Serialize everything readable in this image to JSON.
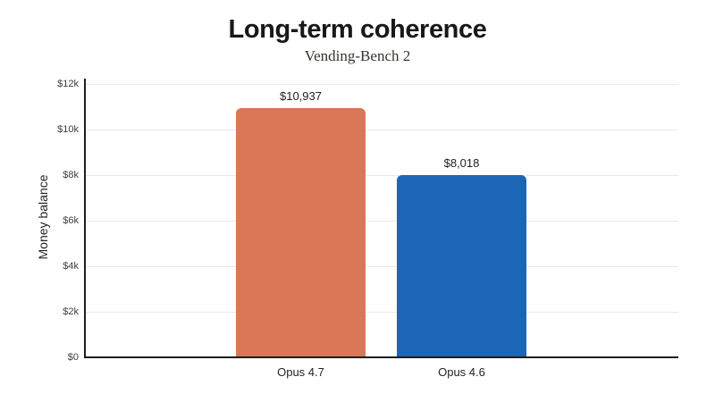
{
  "chart": {
    "title": "Long-term coherence",
    "subtitle": "Vending-Bench 2",
    "ylabel": "Money balance"
  },
  "chart_data": {
    "type": "bar",
    "title": "Long-term coherence",
    "subtitle": "Vending-Bench 2",
    "xlabel": "",
    "ylabel": "Money balance",
    "ylim": [
      0,
      12000
    ],
    "grid": "horizontal",
    "legend": "none",
    "categories": [
      "Opus 4.7",
      "Opus 4.6"
    ],
    "values": [
      10937,
      8018
    ],
    "bars": [
      {
        "category": "Opus 4.7",
        "value": 10937,
        "value_label": "$10,937",
        "color": "#D97757"
      },
      {
        "category": "Opus 4.6",
        "value": 8018,
        "value_label": "$8,018",
        "color": "#1B67B5"
      }
    ],
    "yticks": [
      {
        "label": "$0",
        "value": 0
      },
      {
        "label": "$2k",
        "value": 2000
      },
      {
        "label": "$4k",
        "value": 4000
      },
      {
        "label": "$6k",
        "value": 6000
      },
      {
        "label": "$8k",
        "value": 8000
      },
      {
        "label": "$10k",
        "value": 10000
      },
      {
        "label": "$12k",
        "value": 12000
      }
    ]
  },
  "colors": {
    "background": "#FFFFFF",
    "axis": "#1D1D1B",
    "gridline": "#ECE9E4",
    "bar_orange": "#D97757",
    "bar_blue": "#1B67B5"
  }
}
